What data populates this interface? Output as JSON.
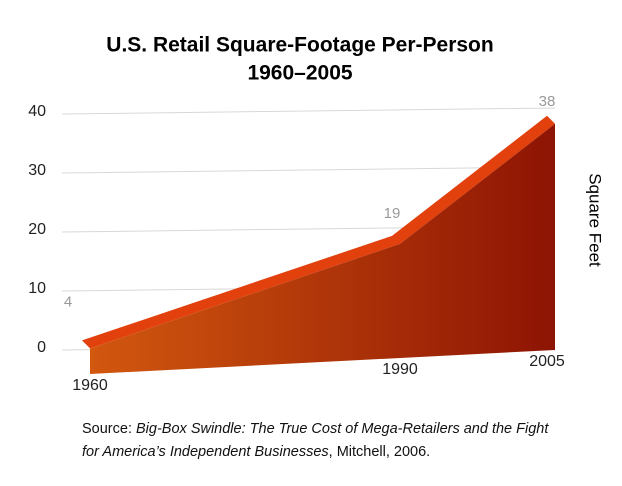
{
  "chart_data": {
    "type": "area",
    "title": "U.S. Retail Square-Footage Per-Person",
    "subtitle": "1960–2005",
    "y_label": "Square Feet",
    "x": [
      1960,
      1990,
      2005
    ],
    "x_labels": [
      "1960",
      "1990",
      "2005"
    ],
    "xlim": [
      1960,
      2005
    ],
    "values": [
      4,
      19,
      38
    ],
    "color": "#c83a0c",
    "ylim": [
      0,
      40
    ],
    "yticks": [
      0,
      10,
      20,
      30,
      40
    ],
    "grid": true,
    "source_prefix": "Source:",
    "source_title": "Big-Box Swindle: The True Cost of Mega-Retailers and the Fight for America’s Independent Businesses",
    "source_suffix": ", Mitchell, 2006."
  }
}
